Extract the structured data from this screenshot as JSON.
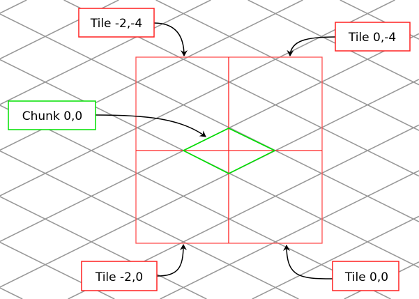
{
  "colors": {
    "grid": "#999999",
    "tile": "#ff0000",
    "chunk": "#00e000",
    "arrow": "#000000"
  },
  "labels": {
    "tile_m2_m4": "Tile -2,-4",
    "tile_0_m4": "Tile 0,-4",
    "chunk_0_0": "Chunk 0,0",
    "tile_m2_0": "Tile -2,0",
    "tile_0_0": "Tile 0,0"
  }
}
